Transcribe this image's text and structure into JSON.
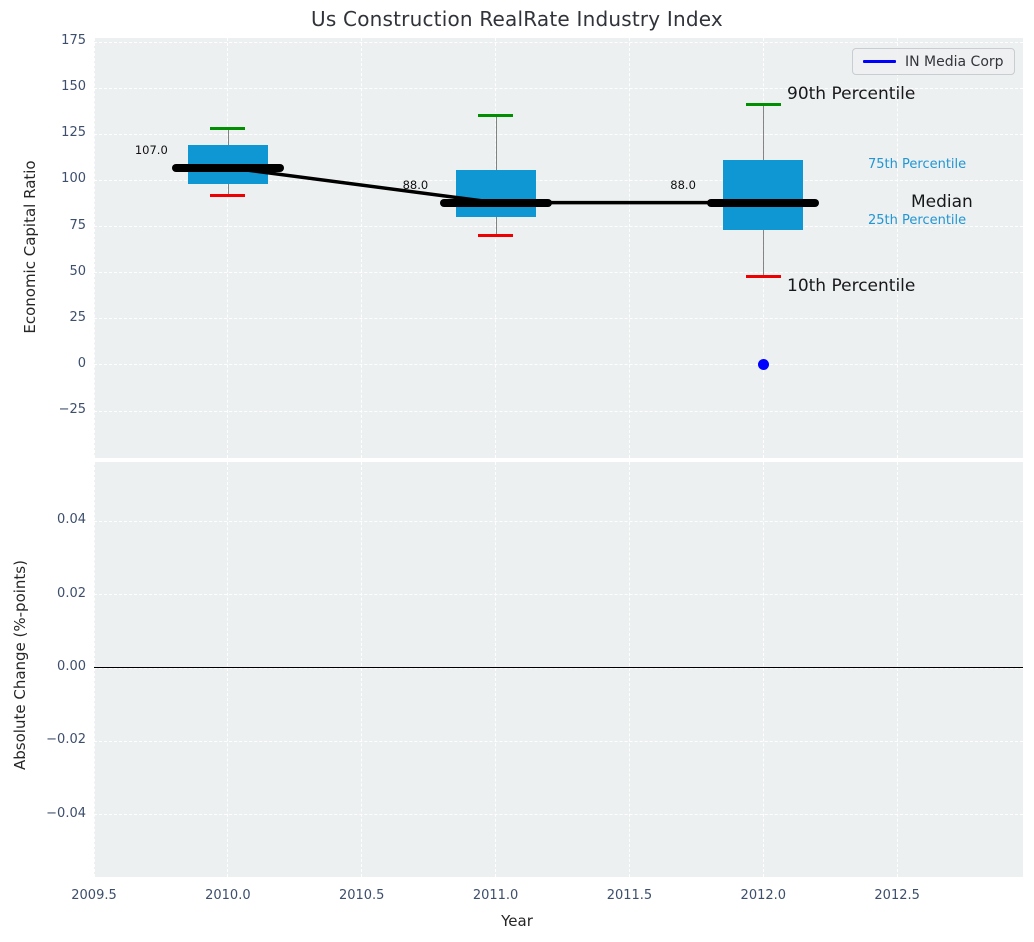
{
  "title": "Us Construction RealRate Industry Index",
  "xlabel": "Year",
  "legend": {
    "items": [
      {
        "label": "IN Media Corp",
        "color": "#0000ff"
      }
    ]
  },
  "colors": {
    "plot_bg": "#edf0f1",
    "grid": "#ffffff",
    "box_fill": "#0e97d3",
    "median_bar": "#000000",
    "median_line": "#000000",
    "whisker": "#4a4a4a",
    "cap_high": "#008f00",
    "cap_low": "#ee0000",
    "tick_text": "#3d4f6d",
    "annotation_blue": "#2196d3",
    "annotation_black": "#17181c",
    "scatter_point": "#0000ff",
    "zero_line": "#000000"
  },
  "top_chart": {
    "ylabel": "Economic Capital Ratio",
    "yticks": {
      "labels": [
        "175",
        "150",
        "125",
        "100",
        "75",
        "50",
        "25",
        "0",
        "−25"
      ],
      "values": [
        175,
        150,
        125,
        100,
        75,
        50,
        25,
        0,
        -25
      ]
    },
    "percentile_labels": {
      "p90": "90th Percentile",
      "p75": "75th Percentile",
      "median": "Median",
      "p25": "25th Percentile",
      "p10": "10th Percentile"
    }
  },
  "bottom_chart": {
    "ylabel": "Absolute Change (%-points)",
    "yticks": {
      "labels": [
        "0.04",
        "0.02",
        "0.00",
        "−0.02",
        "−0.04"
      ],
      "values": [
        0.04,
        0.02,
        0.0,
        -0.02,
        -0.04
      ]
    }
  },
  "xticks": {
    "labels": [
      "2009.5",
      "2010.0",
      "2010.5",
      "2011.0",
      "2011.5",
      "2012.0",
      "2012.5"
    ],
    "values": [
      2009.5,
      2010.0,
      2010.5,
      2011.0,
      2011.5,
      2012.0,
      2012.5
    ]
  },
  "chart_data": [
    {
      "type": "boxplot",
      "title": "Us Construction RealRate Industry Index",
      "xlabel": "Year",
      "ylabel": "Economic Capital Ratio",
      "categories": [
        2010,
        2011,
        2012
      ],
      "boxes": [
        {
          "x": 2010,
          "p10": 92,
          "p25": 98,
          "median": 107,
          "p75": 119,
          "p90": 128
        },
        {
          "x": 2011,
          "p10": 70,
          "p25": 80,
          "median": 88,
          "p75": 105.5,
          "p90": 135
        },
        {
          "x": 2012,
          "p10": 48,
          "p25": 73,
          "median": 88,
          "p75": 111,
          "p90": 141
        }
      ],
      "median_line": {
        "x": [
          2010,
          2011,
          2012
        ],
        "y": [
          107,
          88,
          88
        ],
        "labels": [
          "107.0",
          "88.0",
          "88.0"
        ]
      },
      "scatter": [
        {
          "name": "IN Media Corp",
          "x": 2012,
          "y": 0
        }
      ],
      "xlim": [
        2009.5,
        2012.97
      ],
      "ylim": [
        -50.4,
        177.2
      ],
      "grid": true,
      "legend_position": "upper right"
    },
    {
      "type": "line",
      "ylabel": "Absolute Change (%-points)",
      "xlabel": "Year",
      "series": [],
      "zero_line": 0.0,
      "xlim": [
        2009.5,
        2012.97
      ],
      "ylim": [
        -0.0569,
        0.0561
      ],
      "grid": true
    }
  ]
}
